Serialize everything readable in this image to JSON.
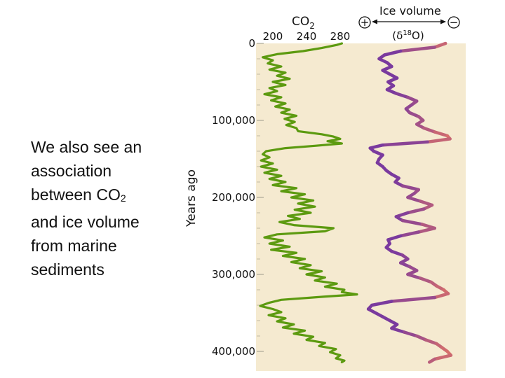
{
  "slide": {
    "text_lines": [
      "We also see an",
      "association",
      "between CO",
      "and ice volume",
      "from marine",
      "sediments"
    ],
    "subscript": "2"
  },
  "chart_data": {
    "type": "line",
    "ylabel": "Years ago",
    "yticks": [
      "0",
      "100,000",
      "200,000",
      "300,000",
      "400,000"
    ],
    "ylim": [
      0,
      420000
    ],
    "y_inverted": true,
    "background": "#f5ead0",
    "co2_axis": {
      "label_main": "CO",
      "label_sub": "2",
      "ticks": [
        "200",
        "240",
        "280"
      ],
      "range": [
        180,
        300
      ]
    },
    "ice_axis": {
      "label": "Ice volume",
      "plus": "+",
      "minus": "−",
      "sublabel_open": "(δ",
      "sublabel_sup": "18",
      "sublabel_close": "O)"
    },
    "series": [
      {
        "color": "#5c9a10",
        "axis": "co2",
        "points": [
          [
            0,
            282
          ],
          [
            2000,
            276
          ],
          [
            6000,
            258
          ],
          [
            10000,
            236
          ],
          [
            14000,
            205
          ],
          [
            18000,
            188
          ],
          [
            22000,
            200
          ],
          [
            26000,
            194
          ],
          [
            30000,
            210
          ],
          [
            34000,
            196
          ],
          [
            38000,
            215
          ],
          [
            42000,
            205
          ],
          [
            46000,
            220
          ],
          [
            50000,
            200
          ],
          [
            54000,
            215
          ],
          [
            58000,
            196
          ],
          [
            62000,
            205
          ],
          [
            66000,
            190
          ],
          [
            70000,
            210
          ],
          [
            74000,
            198
          ],
          [
            78000,
            215
          ],
          [
            82000,
            203
          ],
          [
            86000,
            220
          ],
          [
            90000,
            210
          ],
          [
            94000,
            228
          ],
          [
            98000,
            214
          ],
          [
            102000,
            226
          ],
          [
            106000,
            216
          ],
          [
            110000,
            228
          ],
          [
            114000,
            230
          ],
          [
            118000,
            258
          ],
          [
            121000,
            272
          ],
          [
            124000,
            280
          ],
          [
            127000,
            265
          ],
          [
            130000,
            282
          ],
          [
            133000,
            250
          ],
          [
            136000,
            215
          ],
          [
            140000,
            192
          ],
          [
            144000,
            188
          ],
          [
            148000,
            196
          ],
          [
            152000,
            186
          ],
          [
            156000,
            200
          ],
          [
            160000,
            186
          ],
          [
            164000,
            205
          ],
          [
            168000,
            190
          ],
          [
            172000,
            210
          ],
          [
            176000,
            196
          ],
          [
            180000,
            215
          ],
          [
            184000,
            200
          ],
          [
            188000,
            228
          ],
          [
            192000,
            210
          ],
          [
            196000,
            238
          ],
          [
            200000,
            222
          ],
          [
            204000,
            248
          ],
          [
            208000,
            230
          ],
          [
            212000,
            250
          ],
          [
            216000,
            226
          ],
          [
            220000,
            245
          ],
          [
            224000,
            218
          ],
          [
            228000,
            232
          ],
          [
            232000,
            208
          ],
          [
            236000,
            225
          ],
          [
            240000,
            272
          ],
          [
            244000,
            262
          ],
          [
            248000,
            205
          ],
          [
            252000,
            190
          ],
          [
            256000,
            212
          ],
          [
            260000,
            196
          ],
          [
            264000,
            220
          ],
          [
            268000,
            198
          ],
          [
            272000,
            228
          ],
          [
            276000,
            212
          ],
          [
            280000,
            238
          ],
          [
            284000,
            222
          ],
          [
            288000,
            245
          ],
          [
            292000,
            232
          ],
          [
            296000,
            258
          ],
          [
            300000,
            240
          ],
          [
            304000,
            262
          ],
          [
            308000,
            250
          ],
          [
            312000,
            276
          ],
          [
            316000,
            262
          ],
          [
            320000,
            285
          ],
          [
            323000,
            282
          ],
          [
            326000,
            300
          ],
          [
            329000,
            260
          ],
          [
            333000,
            210
          ],
          [
            337000,
            195
          ],
          [
            341000,
            185
          ],
          [
            345000,
            200
          ],
          [
            349000,
            210
          ],
          [
            353000,
            195
          ],
          [
            357000,
            215
          ],
          [
            361000,
            205
          ],
          [
            365000,
            225
          ],
          [
            369000,
            212
          ],
          [
            373000,
            238
          ],
          [
            377000,
            225
          ],
          [
            381000,
            248
          ],
          [
            385000,
            240
          ],
          [
            389000,
            262
          ],
          [
            393000,
            255
          ],
          [
            397000,
            275
          ],
          [
            401000,
            268
          ],
          [
            405000,
            280
          ],
          [
            409000,
            275
          ],
          [
            412000,
            285
          ],
          [
            414000,
            282
          ]
        ]
      },
      {
        "color": "#7a3a9e",
        "color_light": "#d8706a",
        "axis": "ice",
        "points": [
          [
            0,
            0.9
          ],
          [
            5000,
            0.78
          ],
          [
            10000,
            0.4
          ],
          [
            15000,
            0.22
          ],
          [
            20000,
            0.16
          ],
          [
            25000,
            0.25
          ],
          [
            30000,
            0.3
          ],
          [
            35000,
            0.2
          ],
          [
            40000,
            0.28
          ],
          [
            45000,
            0.36
          ],
          [
            50000,
            0.26
          ],
          [
            55000,
            0.32
          ],
          [
            60000,
            0.25
          ],
          [
            65000,
            0.35
          ],
          [
            70000,
            0.48
          ],
          [
            75000,
            0.58
          ],
          [
            80000,
            0.52
          ],
          [
            85000,
            0.46
          ],
          [
            90000,
            0.5
          ],
          [
            95000,
            0.6
          ],
          [
            100000,
            0.65
          ],
          [
            105000,
            0.58
          ],
          [
            110000,
            0.66
          ],
          [
            115000,
            0.78
          ],
          [
            120000,
            0.92
          ],
          [
            124000,
            0.95
          ],
          [
            128000,
            0.7
          ],
          [
            132000,
            0.2
          ],
          [
            136000,
            0.06
          ],
          [
            140000,
            0.1
          ],
          [
            145000,
            0.2
          ],
          [
            150000,
            0.16
          ],
          [
            155000,
            0.14
          ],
          [
            160000,
            0.2
          ],
          [
            165000,
            0.24
          ],
          [
            170000,
            0.3
          ],
          [
            175000,
            0.38
          ],
          [
            180000,
            0.34
          ],
          [
            185000,
            0.42
          ],
          [
            190000,
            0.6
          ],
          [
            195000,
            0.55
          ],
          [
            200000,
            0.48
          ],
          [
            205000,
            0.62
          ],
          [
            210000,
            0.75
          ],
          [
            215000,
            0.66
          ],
          [
            220000,
            0.48
          ],
          [
            225000,
            0.35
          ],
          [
            230000,
            0.42
          ],
          [
            235000,
            0.64
          ],
          [
            240000,
            0.78
          ],
          [
            245000,
            0.6
          ],
          [
            250000,
            0.4
          ],
          [
            255000,
            0.26
          ],
          [
            260000,
            0.28
          ],
          [
            265000,
            0.24
          ],
          [
            270000,
            0.3
          ],
          [
            275000,
            0.42
          ],
          [
            280000,
            0.48
          ],
          [
            285000,
            0.4
          ],
          [
            290000,
            0.5
          ],
          [
            295000,
            0.58
          ],
          [
            300000,
            0.48
          ],
          [
            305000,
            0.62
          ],
          [
            310000,
            0.74
          ],
          [
            315000,
            0.8
          ],
          [
            320000,
            0.88
          ],
          [
            325000,
            0.93
          ],
          [
            330000,
            0.78
          ],
          [
            335000,
            0.3
          ],
          [
            340000,
            0.08
          ],
          [
            345000,
            0.04
          ],
          [
            350000,
            0.12
          ],
          [
            355000,
            0.2
          ],
          [
            360000,
            0.28
          ],
          [
            365000,
            0.36
          ],
          [
            370000,
            0.3
          ],
          [
            375000,
            0.44
          ],
          [
            380000,
            0.58
          ],
          [
            385000,
            0.68
          ],
          [
            390000,
            0.8
          ],
          [
            395000,
            0.86
          ],
          [
            400000,
            0.92
          ],
          [
            405000,
            0.96
          ],
          [
            410000,
            0.78
          ],
          [
            414000,
            0.72
          ]
        ]
      }
    ]
  }
}
